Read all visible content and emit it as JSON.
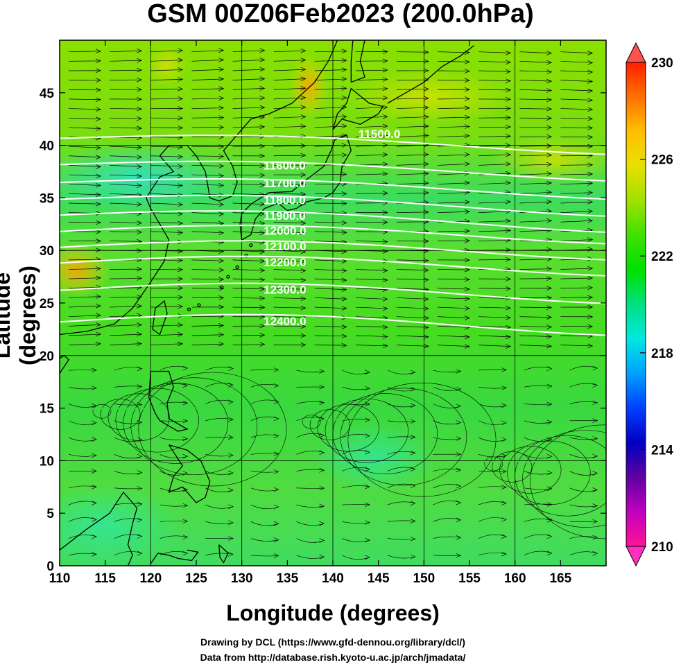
{
  "title": "GSM 00Z06Feb2023 (200.0hPa)",
  "xlabel": "Longitude (degrees)",
  "ylabel": "Latitude  (degrees)",
  "credits": {
    "line1": "Drawing by DCL (https://www.gfd-dennou.org/library/dcl/)",
    "line2": "Data from http://database.rish.kyoto-u.ac.jp/arch/jmadata/"
  },
  "map": {
    "lon_range": [
      110,
      170
    ],
    "lat_range": [
      0,
      50
    ],
    "x_ticks": [
      "110",
      "115",
      "120",
      "125",
      "130",
      "135",
      "140",
      "145",
      "150",
      "155",
      "160",
      "165"
    ],
    "y_ticks": [
      "0",
      "5",
      "10",
      "15",
      "20",
      "25",
      "30",
      "35",
      "40",
      "45"
    ],
    "grid": true,
    "field": "temperature shading (K)",
    "contours": [
      {
        "label": "11500.0",
        "lat": 40.5
      },
      {
        "label": "11600.0",
        "lat": 38.0
      },
      {
        "label": "11700.0",
        "lat": 36.3
      },
      {
        "label": "11800.0",
        "lat": 34.7
      },
      {
        "label": "11900.0",
        "lat": 33.2
      },
      {
        "label": "12000.0",
        "lat": 31.8
      },
      {
        "label": "12100.0",
        "lat": 30.3
      },
      {
        "label": "12200.0",
        "lat": 28.8
      },
      {
        "label": "12300.0",
        "lat": 26.2
      },
      {
        "label": "12400.0",
        "lat": 23.2
      }
    ]
  },
  "colorbar": {
    "min": 210,
    "max": 230,
    "tick_labels": [
      "230",
      "226",
      "222",
      "218",
      "214",
      "210"
    ],
    "colors": [
      "#ff1493",
      "#c000c0",
      "#6000a0",
      "#0000c0",
      "#0040ff",
      "#00a0ff",
      "#00e8e0",
      "#00e080",
      "#00e000",
      "#40e000",
      "#a0e000",
      "#e8e000",
      "#ffc000",
      "#ff7000",
      "#ff2000"
    ]
  }
}
